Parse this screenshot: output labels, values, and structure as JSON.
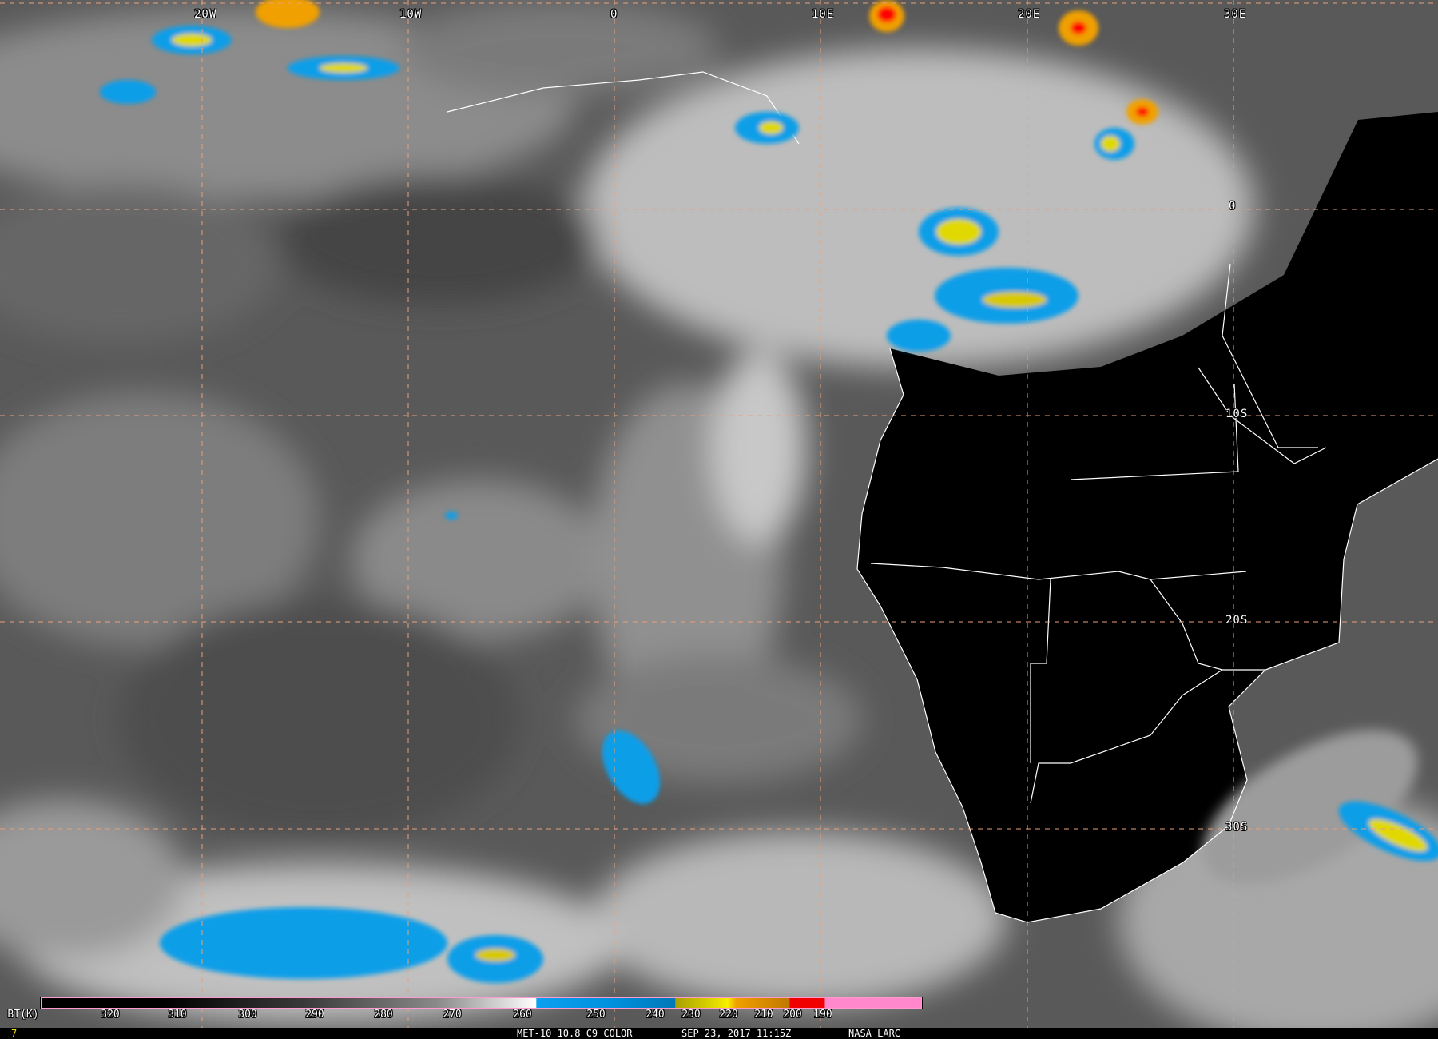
{
  "map": {
    "grid_color": "#e8a07a",
    "land_color": "#000000",
    "border_color": "#ffffff",
    "longitude_labels": [
      "20W",
      "10W",
      "0",
      "10E",
      "20E",
      "30E"
    ],
    "latitude_labels": [
      "0",
      "10S",
      "20S",
      "30S"
    ]
  },
  "colorbar": {
    "unit_label": "BT(K)",
    "ticks": [
      "320",
      "310",
      "300",
      "290",
      "280",
      "270",
      "260",
      "250",
      "240",
      "230",
      "220",
      "210",
      "200",
      "190"
    ],
    "colors": {
      "cold_blue": "#0aa0f0",
      "deep_blue": "#0080c8",
      "yellow": "#e8e000",
      "orange": "#f0a000",
      "red": "#f00000",
      "pink": "#ff88cc"
    }
  },
  "footer": {
    "frame_number": "7",
    "satellite_product": "MET-10 10.8 C9 COLOR",
    "timestamp": "SEP 23, 2017 11:15Z",
    "source": "NASA LARC"
  }
}
